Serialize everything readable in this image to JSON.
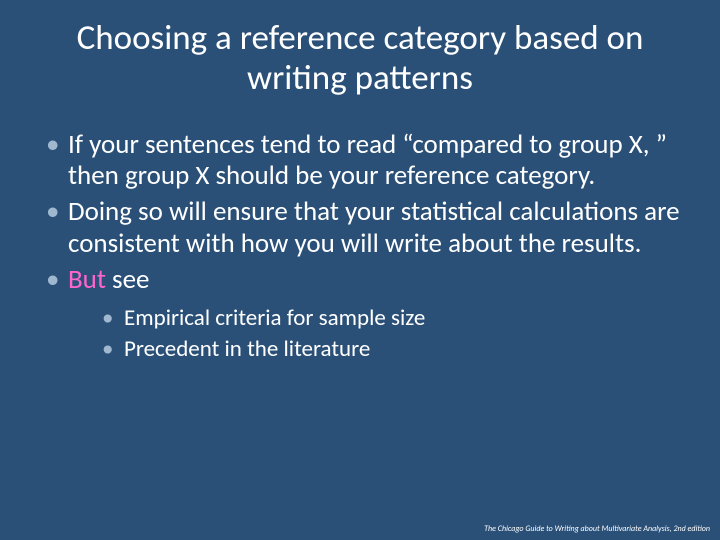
{
  "colors": {
    "background": "#2a5078",
    "text": "#ffffff",
    "bullet_marker": "#9fb8cf",
    "accent": "#ff66cc"
  },
  "typography": {
    "title_fontsize": 35,
    "body_fontsize": 27,
    "sub_fontsize": 23,
    "footer_fontsize": 8,
    "font_family": "Calibri"
  },
  "title": "Choosing a reference category based on writing patterns",
  "bullets": [
    {
      "text": "If your sentences tend to read “compared to group X, ” then group X should be your reference category."
    },
    {
      "text": "Doing so will ensure that your statistical calculations are consistent with how you will write about the results."
    },
    {
      "accent_text": "But",
      "text": " see",
      "sub": [
        "Empirical criteria for sample size",
        "Precedent in the literature"
      ]
    }
  ],
  "footer": "The Chicago Guide to Writing about Multivariate Analysis, 2nd edition"
}
